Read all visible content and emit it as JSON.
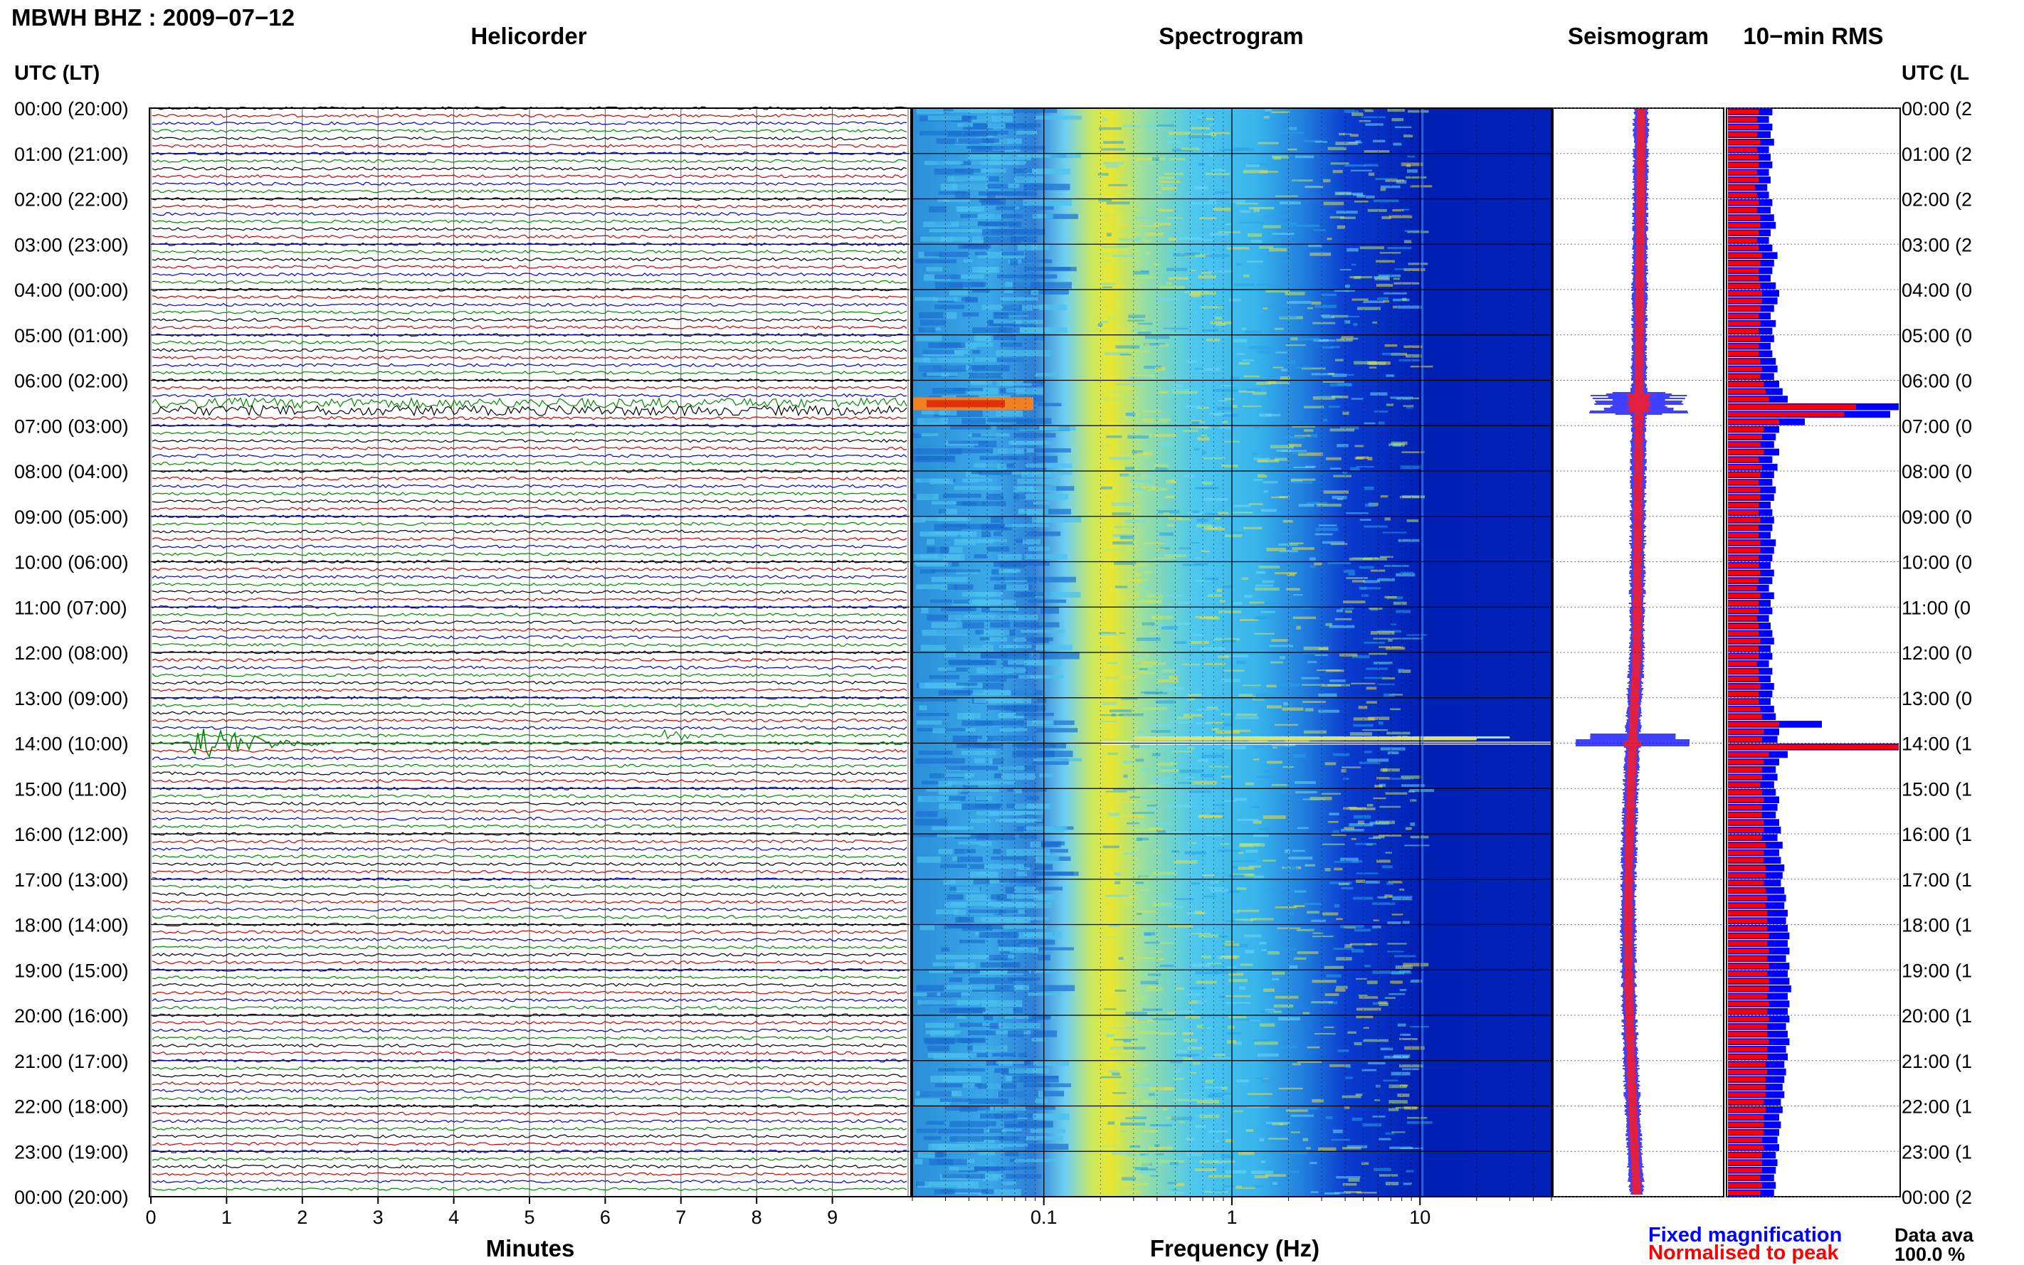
{
  "header": {
    "station_title": "MBWH BHZ : 2009−07−12",
    "helicorder_title": "Helicorder",
    "spectrogram_title": "Spectrogram",
    "seismogram_title": "Seismogram",
    "rms_title": "10−min RMS",
    "utc_header_left": "UTC (LT)",
    "utc_header_right": "UTC (L"
  },
  "time_labels": [
    "00:00 (20:00)",
    "01:00 (21:00)",
    "02:00 (22:00)",
    "03:00 (23:00)",
    "04:00 (00:00)",
    "05:00 (01:00)",
    "06:00 (02:00)",
    "07:00 (03:00)",
    "08:00 (04:00)",
    "09:00 (05:00)",
    "10:00 (06:00)",
    "11:00 (07:00)",
    "12:00 (08:00)",
    "13:00 (09:00)",
    "14:00 (10:00)",
    "15:00 (11:00)",
    "16:00 (12:00)",
    "17:00 (13:00)",
    "18:00 (14:00)",
    "19:00 (15:00)",
    "20:00 (16:00)",
    "21:00 (17:00)",
    "22:00 (18:00)",
    "23:00 (19:00)",
    "00:00 (20:00)"
  ],
  "time_labels_right": [
    "00:00 (2",
    "01:00 (2",
    "02:00 (2",
    "03:00 (2",
    "04:00 (0",
    "05:00 (0",
    "06:00 (0",
    "07:00 (0",
    "08:00 (0",
    "09:00 (0",
    "10:00 (0",
    "11:00 (0",
    "12:00 (0",
    "13:00 (0",
    "14:00 (1",
    "15:00 (1",
    "16:00 (1",
    "17:00 (1",
    "18:00 (1",
    "19:00 (1",
    "20:00 (1",
    "21:00 (1",
    "22:00 (1",
    "23:00 (1",
    "00:00 (2"
  ],
  "helicorder": {
    "x_ticks": [
      "0",
      "1",
      "2",
      "3",
      "4",
      "5",
      "6",
      "7",
      "8",
      "9"
    ],
    "xlabel": "Minutes",
    "trace_colors": [
      "#000000",
      "#cc0000",
      "#0000cc",
      "#008800"
    ]
  },
  "spectrogram": {
    "x_ticks": [
      "0.1",
      "1",
      "10"
    ],
    "xlabel": "Frequency (Hz)"
  },
  "legend": {
    "fixed": "Fixed magnification",
    "normalised": "Normalised to peak",
    "fixed_color": "#0000ff",
    "normalised_color": "#ff0000"
  },
  "footer": {
    "data_availability_label": "Data ava",
    "data_availability_value": "100.0 %"
  },
  "chart_data": [
    {
      "type": "line",
      "title": "Helicorder",
      "xlabel": "Minutes",
      "x_range": [
        0,
        10
      ],
      "rows": "one trace per 10 minutes, 00:00 to 00:00 UTC",
      "events": [
        {
          "utc": "06:30",
          "description": "elevated noise, 06:30–06:40"
        },
        {
          "utc": "13:50",
          "minute": 6.8,
          "description": "small event"
        },
        {
          "utc": "14:00",
          "minute": 0.5,
          "description": "large event with coda"
        }
      ]
    },
    {
      "type": "heatmap",
      "title": "Spectrogram",
      "xlabel": "Frequency (Hz)",
      "x_scale": "log",
      "x_range": [
        0.02,
        50
      ],
      "peak_frequency_hz": 0.25,
      "events": [
        {
          "utc": "06:30",
          "description": "strong low-frequency energy (0.02–0.2 Hz)"
        },
        {
          "utc": "13:50",
          "description": "broadband energy"
        },
        {
          "utc": "14:00",
          "description": "broadband energy"
        }
      ]
    },
    {
      "type": "bar",
      "title": "10−min RMS",
      "series": [
        {
          "name": "Fixed magnification",
          "color": "#0000ff"
        },
        {
          "name": "Normalised to peak",
          "color": "#ff0000"
        }
      ],
      "rows": 144,
      "relative_fixed": [
        0.26,
        0.24,
        0.26,
        0.25,
        0.27,
        0.24,
        0.25,
        0.26,
        0.24,
        0.25,
        0.23,
        0.24,
        0.26,
        0.25,
        0.27,
        0.28,
        0.25,
        0.24,
        0.26,
        0.29,
        0.27,
        0.26,
        0.25,
        0.28,
        0.3,
        0.29,
        0.27,
        0.25,
        0.28,
        0.26,
        0.27,
        0.25,
        0.26,
        0.28,
        0.29,
        0.27,
        0.3,
        0.32,
        0.35,
        1.0,
        0.95,
        0.45,
        0.3,
        0.28,
        0.27,
        0.3,
        0.26,
        0.29,
        0.27,
        0.26,
        0.28,
        0.27,
        0.25,
        0.26,
        0.27,
        0.26,
        0.25,
        0.28,
        0.27,
        0.26,
        0.25,
        0.27,
        0.26,
        0.24,
        0.27,
        0.25,
        0.26,
        0.24,
        0.25,
        0.26,
        0.27,
        0.25,
        0.26,
        0.24,
        0.26,
        0.25,
        0.27,
        0.26,
        0.25,
        0.27,
        0.28,
        0.55,
        0.3,
        0.29,
        1.0,
        0.35,
        0.3,
        0.28,
        0.29,
        0.27,
        0.28,
        0.3,
        0.29,
        0.28,
        0.3,
        0.31,
        0.29,
        0.32,
        0.3,
        0.31,
        0.33,
        0.32,
        0.31,
        0.33,
        0.34,
        0.33,
        0.35,
        0.34,
        0.35,
        0.36,
        0.35,
        0.36,
        0.34,
        0.36,
        0.35,
        0.36,
        0.37,
        0.35,
        0.36,
        0.35,
        0.36,
        0.34,
        0.35,
        0.36,
        0.34,
        0.35,
        0.33,
        0.34,
        0.33,
        0.32,
        0.33,
        0.31,
        0.32,
        0.3,
        0.31,
        0.3,
        0.29,
        0.3,
        0.28,
        0.29,
        0.28,
        0.27,
        0.28,
        0.27
      ],
      "relative_normalised": [
        0.18,
        0.17,
        0.18,
        0.17,
        0.19,
        0.17,
        0.18,
        0.18,
        0.17,
        0.18,
        0.16,
        0.17,
        0.18,
        0.17,
        0.19,
        0.19,
        0.18,
        0.17,
        0.18,
        0.2,
        0.19,
        0.18,
        0.18,
        0.19,
        0.2,
        0.2,
        0.19,
        0.18,
        0.19,
        0.18,
        0.19,
        0.18,
        0.18,
        0.19,
        0.2,
        0.19,
        0.21,
        0.22,
        0.24,
        0.75,
        0.68,
        0.3,
        0.21,
        0.2,
        0.19,
        0.21,
        0.18,
        0.2,
        0.19,
        0.18,
        0.19,
        0.19,
        0.18,
        0.18,
        0.19,
        0.18,
        0.18,
        0.19,
        0.19,
        0.18,
        0.18,
        0.19,
        0.18,
        0.17,
        0.19,
        0.18,
        0.18,
        0.17,
        0.18,
        0.18,
        0.19,
        0.18,
        0.18,
        0.17,
        0.18,
        0.18,
        0.19,
        0.18,
        0.18,
        0.19,
        0.2,
        0.3,
        0.21,
        0.2,
        1.0,
        0.24,
        0.21,
        0.2,
        0.2,
        0.19,
        0.2,
        0.21,
        0.2,
        0.2,
        0.21,
        0.21,
        0.2,
        0.22,
        0.21,
        0.21,
        0.22,
        0.22,
        0.21,
        0.22,
        0.23,
        0.22,
        0.23,
        0.23,
        0.23,
        0.24,
        0.23,
        0.24,
        0.23,
        0.24,
        0.23,
        0.24,
        0.24,
        0.23,
        0.24,
        0.23,
        0.24,
        0.23,
        0.23,
        0.24,
        0.23,
        0.23,
        0.22,
        0.23,
        0.22,
        0.22,
        0.22,
        0.21,
        0.22,
        0.21,
        0.21,
        0.21,
        0.2,
        0.21,
        0.2,
        0.2,
        0.2,
        0.19,
        0.2,
        0.19
      ]
    }
  ]
}
